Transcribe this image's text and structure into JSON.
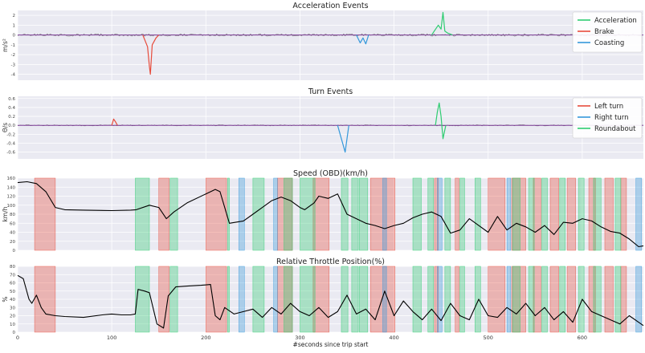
{
  "chart_data": [
    {
      "type": "line",
      "title": "Acceleration Events",
      "xlabel": "",
      "ylabel": "m/s²",
      "xlim": [
        0,
        665
      ],
      "ylim": [
        -4.6,
        2.5
      ],
      "yticks": [
        2,
        1,
        0,
        -1,
        -2,
        -3,
        -4
      ],
      "grid": true,
      "legend_position": "top-right",
      "series": [
        {
          "name": "Acceleration",
          "color": "#2ecc71",
          "x": [
            440,
            447,
            450,
            452,
            454,
            457,
            462
          ],
          "y": [
            0,
            1.0,
            0.6,
            2.3,
            0.4,
            0.2,
            0
          ]
        },
        {
          "name": "Brake",
          "color": "#e74c3c",
          "x": [
            133,
            138,
            140,
            141,
            143,
            147,
            150
          ],
          "y": [
            0,
            -1.2,
            -3.2,
            -4.0,
            -1.0,
            -0.3,
            0
          ]
        },
        {
          "name": "Coasting",
          "color": "#3498db",
          "x": [
            360,
            364,
            367,
            370,
            373
          ],
          "y": [
            0,
            -0.8,
            -0.3,
            -0.9,
            0
          ]
        }
      ]
    },
    {
      "type": "line",
      "title": "Turn Events",
      "xlabel": "",
      "ylabel": "Θ/s",
      "xlim": [
        0,
        665
      ],
      "ylim": [
        -0.75,
        0.65
      ],
      "yticks": [
        0.6,
        0.4,
        0.2,
        0.0,
        -0.2,
        -0.4,
        -0.6
      ],
      "grid": true,
      "legend_position": "top-right",
      "series": [
        {
          "name": "Left turn",
          "color": "#e74c3c",
          "x": [
            100,
            102,
            104,
            106
          ],
          "y": [
            0,
            0.14,
            0.08,
            0
          ]
        },
        {
          "name": "Right turn",
          "color": "#3498db",
          "x": [
            340,
            344,
            348,
            352
          ],
          "y": [
            0,
            -0.3,
            -0.6,
            0
          ]
        },
        {
          "name": "Roundabout",
          "color": "#2ecc71",
          "x": [
            444,
            446,
            448,
            450,
            452,
            455
          ],
          "y": [
            0,
            0.3,
            0.5,
            0.2,
            -0.3,
            0
          ]
        }
      ]
    },
    {
      "type": "line",
      "title": "Speed (OBD)(km/h)",
      "xlabel": "",
      "ylabel": "km/h",
      "xlim": [
        0,
        665
      ],
      "ylim": [
        0,
        160
      ],
      "yticks": [
        160,
        140,
        120,
        100,
        80,
        60,
        40,
        20,
        0
      ],
      "grid": true,
      "series": [
        {
          "name": "",
          "color": "#000000",
          "x": [
            0,
            10,
            20,
            30,
            40,
            50,
            70,
            100,
            120,
            126,
            140,
            150,
            158,
            166,
            180,
            200,
            210,
            215,
            225,
            240,
            250,
            260,
            270,
            280,
            290,
            300,
            305,
            315,
            320,
            330,
            340,
            350,
            360,
            370,
            380,
            390,
            400,
            410,
            420,
            430,
            440,
            450,
            460,
            470,
            480,
            490,
            500,
            510,
            520,
            530,
            540,
            550,
            560,
            570,
            580,
            590,
            600,
            610,
            620,
            630,
            640,
            650,
            660,
            665
          ],
          "y": [
            150,
            152,
            148,
            130,
            95,
            90,
            89,
            88,
            89,
            90,
            100,
            95,
            70,
            85,
            105,
            125,
            135,
            130,
            60,
            65,
            80,
            95,
            110,
            118,
            110,
            95,
            90,
            105,
            120,
            115,
            125,
            80,
            70,
            60,
            55,
            48,
            55,
            60,
            72,
            80,
            85,
            75,
            38,
            45,
            70,
            55,
            40,
            75,
            45,
            60,
            52,
            40,
            55,
            35,
            62,
            60,
            70,
            65,
            52,
            42,
            38,
            25,
            8,
            10
          ]
        }
      ],
      "shaded_spans": [
        {
          "event": "Brake",
          "color": "#e74c3c",
          "x": [
            [
              18,
              40
            ],
            [
              150,
              161
            ],
            [
              200,
              222
            ],
            [
              276,
              292
            ],
            [
              314,
              331
            ],
            [
              375,
              401
            ],
            [
              443,
              447
            ],
            [
              465,
              469
            ],
            [
              500,
              518
            ],
            [
              525,
              540
            ],
            [
              548,
              556
            ],
            [
              566,
              575
            ],
            [
              584,
              593
            ],
            [
              607,
              614
            ],
            [
              624,
              633
            ],
            [
              641,
              647
            ]
          ]
        },
        {
          "event": "Acceleration",
          "color": "#2ecc71",
          "x": [
            [
              125,
              140
            ],
            [
              162,
              170
            ],
            [
              223,
              225
            ],
            [
              250,
              262
            ],
            [
              283,
              292
            ],
            [
              300,
              316
            ],
            [
              344,
              351
            ],
            [
              355,
              362
            ],
            [
              363,
              372
            ],
            [
              420,
              429
            ],
            [
              436,
              442
            ],
            [
              454,
              460
            ],
            [
              470,
              475
            ],
            [
              486,
              492
            ],
            [
              526,
              534
            ],
            [
              543,
              549
            ],
            [
              557,
              563
            ],
            [
              576,
              582
            ],
            [
              596,
              602
            ],
            [
              612,
              620
            ],
            [
              635,
              641
            ]
          ]
        },
        {
          "event": "Coasting",
          "color": "#3498db",
          "x": [
            [
              235,
              241
            ],
            [
              272,
              276
            ],
            [
              388,
              392
            ],
            [
              446,
              451
            ],
            [
              520,
              524
            ],
            [
              657,
              663
            ]
          ]
        }
      ]
    },
    {
      "type": "line",
      "title": "Relative Throttle Position(%)",
      "xlabel": "#seconds since trip start",
      "ylabel": "%",
      "xlim": [
        0,
        665
      ],
      "ylim": [
        0,
        80
      ],
      "yticks": [
        80,
        70,
        60,
        50,
        40,
        30,
        20,
        10,
        0
      ],
      "xticks": [
        0,
        100,
        200,
        300,
        400,
        500,
        600
      ],
      "grid": true,
      "series": [
        {
          "name": "",
          "color": "#000000",
          "x": [
            0,
            6,
            12,
            15,
            20,
            25,
            30,
            40,
            50,
            70,
            90,
            100,
            110,
            120,
            125,
            128,
            135,
            140,
            148,
            155,
            160,
            168,
            180,
            195,
            205,
            210,
            215,
            220,
            230,
            240,
            250,
            260,
            270,
            280,
            290,
            300,
            310,
            320,
            330,
            340,
            350,
            360,
            370,
            380,
            390,
            400,
            410,
            420,
            430,
            440,
            450,
            460,
            470,
            480,
            490,
            500,
            510,
            520,
            530,
            540,
            550,
            560,
            570,
            580,
            590,
            600,
            610,
            620,
            630,
            640,
            650,
            660,
            665
          ],
          "y": [
            69,
            65,
            40,
            35,
            45,
            30,
            22,
            20,
            19,
            18,
            21,
            22,
            21,
            21,
            22,
            52,
            50,
            48,
            10,
            5,
            44,
            55,
            56,
            57,
            58,
            20,
            15,
            30,
            22,
            25,
            28,
            18,
            30,
            22,
            35,
            25,
            20,
            30,
            18,
            25,
            45,
            22,
            28,
            15,
            50,
            20,
            38,
            25,
            15,
            28,
            14,
            35,
            20,
            15,
            40,
            20,
            18,
            30,
            22,
            35,
            20,
            30,
            15,
            25,
            12,
            40,
            25,
            20,
            15,
            10,
            20,
            12,
            8
          ]
        }
      ],
      "shaded_spans": [
        {
          "event": "Brake",
          "color": "#e74c3c",
          "x": [
            [
              18,
              40
            ],
            [
              150,
              161
            ],
            [
              200,
              222
            ],
            [
              276,
              292
            ],
            [
              314,
              331
            ],
            [
              375,
              401
            ],
            [
              443,
              447
            ],
            [
              465,
              469
            ],
            [
              500,
              518
            ],
            [
              525,
              540
            ],
            [
              548,
              556
            ],
            [
              566,
              575
            ],
            [
              584,
              593
            ],
            [
              607,
              614
            ],
            [
              624,
              633
            ],
            [
              641,
              647
            ]
          ]
        },
        {
          "event": "Acceleration",
          "color": "#2ecc71",
          "x": [
            [
              125,
              140
            ],
            [
              162,
              170
            ],
            [
              223,
              225
            ],
            [
              250,
              262
            ],
            [
              283,
              292
            ],
            [
              300,
              316
            ],
            [
              344,
              351
            ],
            [
              355,
              362
            ],
            [
              363,
              372
            ],
            [
              420,
              429
            ],
            [
              436,
              442
            ],
            [
              454,
              460
            ],
            [
              470,
              475
            ],
            [
              486,
              492
            ],
            [
              526,
              534
            ],
            [
              543,
              549
            ],
            [
              557,
              563
            ],
            [
              576,
              582
            ],
            [
              596,
              602
            ],
            [
              612,
              620
            ],
            [
              635,
              641
            ]
          ]
        },
        {
          "event": "Coasting",
          "color": "#3498db",
          "x": [
            [
              235,
              241
            ],
            [
              272,
              276
            ],
            [
              388,
              392
            ],
            [
              446,
              451
            ],
            [
              520,
              524
            ],
            [
              657,
              663
            ]
          ]
        }
      ]
    }
  ]
}
